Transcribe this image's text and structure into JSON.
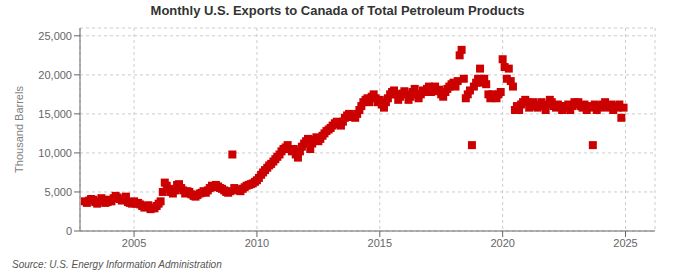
{
  "chart_data": {
    "type": "scatter",
    "title": "Monthly U.S. Exports to Canada of Total Petroleum Products",
    "y_label": "Thousand Barrels",
    "annotations": [
      "Source: U.S. Energy Information Administration"
    ],
    "color": "#CC0000",
    "marker": "square",
    "grid": true,
    "xlim": [
      2002.8,
      2026.2
    ],
    "ylim": [
      0,
      26000
    ],
    "xticks": [
      2005,
      2010,
      2015,
      2020,
      2025
    ],
    "yticks": [
      0,
      {
        "value": 5000,
        "label": "5,000"
      },
      {
        "value": 10000,
        "label": "10,000"
      },
      {
        "value": 15000,
        "label": "15,000"
      },
      {
        "value": 20000,
        "label": "20,000"
      },
      {
        "value": 25000,
        "label": "25,000"
      }
    ],
    "x": [
      2003.0,
      2003.08,
      2003.17,
      2003.25,
      2003.33,
      2003.42,
      2003.5,
      2003.58,
      2003.67,
      2003.75,
      2003.83,
      2003.92,
      2004.0,
      2004.08,
      2004.17,
      2004.25,
      2004.33,
      2004.42,
      2004.5,
      2004.58,
      2004.67,
      2004.75,
      2004.83,
      2004.92,
      2005.0,
      2005.08,
      2005.17,
      2005.25,
      2005.33,
      2005.42,
      2005.5,
      2005.58,
      2005.67,
      2005.75,
      2005.83,
      2005.92,
      2006.0,
      2006.08,
      2006.17,
      2006.25,
      2006.33,
      2006.42,
      2006.5,
      2006.58,
      2006.67,
      2006.75,
      2006.83,
      2006.92,
      2007.0,
      2007.08,
      2007.17,
      2007.25,
      2007.33,
      2007.42,
      2007.5,
      2007.58,
      2007.67,
      2007.75,
      2007.83,
      2007.92,
      2008.0,
      2008.08,
      2008.17,
      2008.25,
      2008.33,
      2008.42,
      2008.5,
      2008.58,
      2008.67,
      2008.75,
      2008.83,
      2008.92,
      2009.0,
      2009.08,
      2009.17,
      2009.25,
      2009.33,
      2009.42,
      2009.5,
      2009.58,
      2009.67,
      2009.75,
      2009.83,
      2009.92,
      2010.0,
      2010.08,
      2010.17,
      2010.25,
      2010.33,
      2010.42,
      2010.5,
      2010.58,
      2010.67,
      2010.75,
      2010.83,
      2010.92,
      2011.0,
      2011.08,
      2011.17,
      2011.25,
      2011.33,
      2011.42,
      2011.5,
      2011.58,
      2011.67,
      2011.75,
      2011.83,
      2011.92,
      2012.0,
      2012.08,
      2012.17,
      2012.25,
      2012.33,
      2012.42,
      2012.5,
      2012.58,
      2012.67,
      2012.75,
      2012.83,
      2012.92,
      2013.0,
      2013.08,
      2013.17,
      2013.25,
      2013.33,
      2013.42,
      2013.5,
      2013.58,
      2013.67,
      2013.75,
      2013.83,
      2013.92,
      2014.0,
      2014.08,
      2014.17,
      2014.25,
      2014.33,
      2014.42,
      2014.5,
      2014.58,
      2014.67,
      2014.75,
      2014.83,
      2014.92,
      2015.0,
      2015.08,
      2015.17,
      2015.25,
      2015.33,
      2015.42,
      2015.5,
      2015.58,
      2015.67,
      2015.75,
      2015.83,
      2015.92,
      2016.0,
      2016.08,
      2016.17,
      2016.25,
      2016.33,
      2016.42,
      2016.5,
      2016.58,
      2016.67,
      2016.75,
      2016.83,
      2016.92,
      2017.0,
      2017.08,
      2017.17,
      2017.25,
      2017.33,
      2017.42,
      2017.5,
      2017.58,
      2017.67,
      2017.75,
      2017.83,
      2017.92,
      2018.0,
      2018.08,
      2018.17,
      2018.25,
      2018.33,
      2018.42,
      2018.5,
      2018.58,
      2018.67,
      2018.75,
      2018.83,
      2018.92,
      2019.0,
      2019.08,
      2019.17,
      2019.25,
      2019.33,
      2019.42,
      2019.5,
      2019.58,
      2019.67,
      2019.75,
      2019.83,
      2019.92,
      2020.0,
      2020.08,
      2020.17,
      2020.25,
      2020.33,
      2020.42,
      2020.5,
      2020.58,
      2020.67,
      2020.75,
      2020.83,
      2020.92,
      2021.0,
      2021.08,
      2021.17,
      2021.25,
      2021.33,
      2021.42,
      2021.5,
      2021.58,
      2021.67,
      2021.75,
      2021.83,
      2021.92,
      2022.0,
      2022.08,
      2022.17,
      2022.25,
      2022.33,
      2022.42,
      2022.5,
      2022.58,
      2022.67,
      2022.75,
      2022.83,
      2022.92,
      2023.0,
      2023.08,
      2023.17,
      2023.25,
      2023.33,
      2023.42,
      2023.5,
      2023.58,
      2023.67,
      2023.75,
      2023.83,
      2023.92,
      2024.0,
      2024.08,
      2024.17,
      2024.25,
      2024.33,
      2024.42,
      2024.5,
      2024.58,
      2024.67,
      2024.75,
      2024.83,
      2024.92
    ],
    "values": [
      3800,
      3600,
      3900,
      4100,
      4000,
      3700,
      3500,
      3800,
      4200,
      4000,
      3600,
      3700,
      4000,
      3800,
      4200,
      4500,
      4300,
      4100,
      3900,
      4000,
      4400,
      3700,
      3600,
      3500,
      3800,
      3500,
      3600,
      3400,
      3200,
      3000,
      3100,
      3300,
      2800,
      3000,
      2900,
      3200,
      3500,
      3800,
      5000,
      6200,
      5800,
      5400,
      5000,
      4800,
      5200,
      5900,
      6000,
      5500,
      5200,
      4800,
      5100,
      5000,
      4700,
      4500,
      4400,
      4600,
      4800,
      4900,
      5100,
      4900,
      5200,
      5500,
      5800,
      5600,
      5900,
      5700,
      5500,
      5400,
      5200,
      5000,
      4900,
      5100,
      9800,
      5500,
      5300,
      5200,
      5100,
      5400,
      5600,
      5800,
      5900,
      6000,
      6100,
      6300,
      6500,
      6800,
      7200,
      7500,
      7800,
      8100,
      8400,
      8600,
      8900,
      9200,
      9500,
      9800,
      10200,
      10500,
      10700,
      11000,
      10500,
      10200,
      10500,
      9800,
      9400,
      10200,
      10800,
      11200,
      11500,
      11800,
      10500,
      11200,
      11700,
      12000,
      11500,
      11800,
      12200,
      12500,
      12800,
      13000,
      13200,
      13500,
      13800,
      14000,
      13700,
      13500,
      14000,
      14500,
      14800,
      15000,
      14600,
      14800,
      14500,
      15000,
      15500,
      16000,
      16500,
      16800,
      17000,
      16500,
      17200,
      17500,
      17000,
      16500,
      16800,
      16200,
      15800,
      16500,
      17000,
      17500,
      17800,
      18000,
      17500,
      16800,
      17200,
      17600,
      17900,
      17500,
      16800,
      17200,
      17800,
      18200,
      17500,
      17000,
      17500,
      18000,
      17800,
      18200,
      18500,
      17800,
      18200,
      18500,
      17900,
      18100,
      17500,
      17200,
      17800,
      18200,
      18500,
      18800,
      19000,
      18500,
      19200,
      22500,
      23200,
      19500,
      17000,
      17500,
      18000,
      11000,
      18500,
      19000,
      19500,
      20800,
      19000,
      19500,
      18800,
      17500,
      17000,
      17500,
      17200,
      17000,
      17500,
      17800,
      22000,
      21000,
      19500,
      20800,
      19200,
      18500,
      15500,
      16000,
      15500,
      16200,
      16500,
      16800,
      16500,
      15800,
      16200,
      16500,
      16000,
      15800,
      16200,
      16500,
      16000,
      15500,
      16200,
      16800,
      16500,
      16000,
      15800,
      16200,
      16000,
      15500,
      16000,
      15800,
      16200,
      15500,
      16000,
      16500,
      16200,
      16500,
      16000,
      15800,
      16200,
      15500,
      16000,
      15800,
      11000,
      16200,
      15500,
      16000,
      15800,
      16200,
      16500,
      16000,
      15800,
      16200,
      15500,
      16000,
      15800,
      16200,
      14500,
      15800
    ]
  }
}
